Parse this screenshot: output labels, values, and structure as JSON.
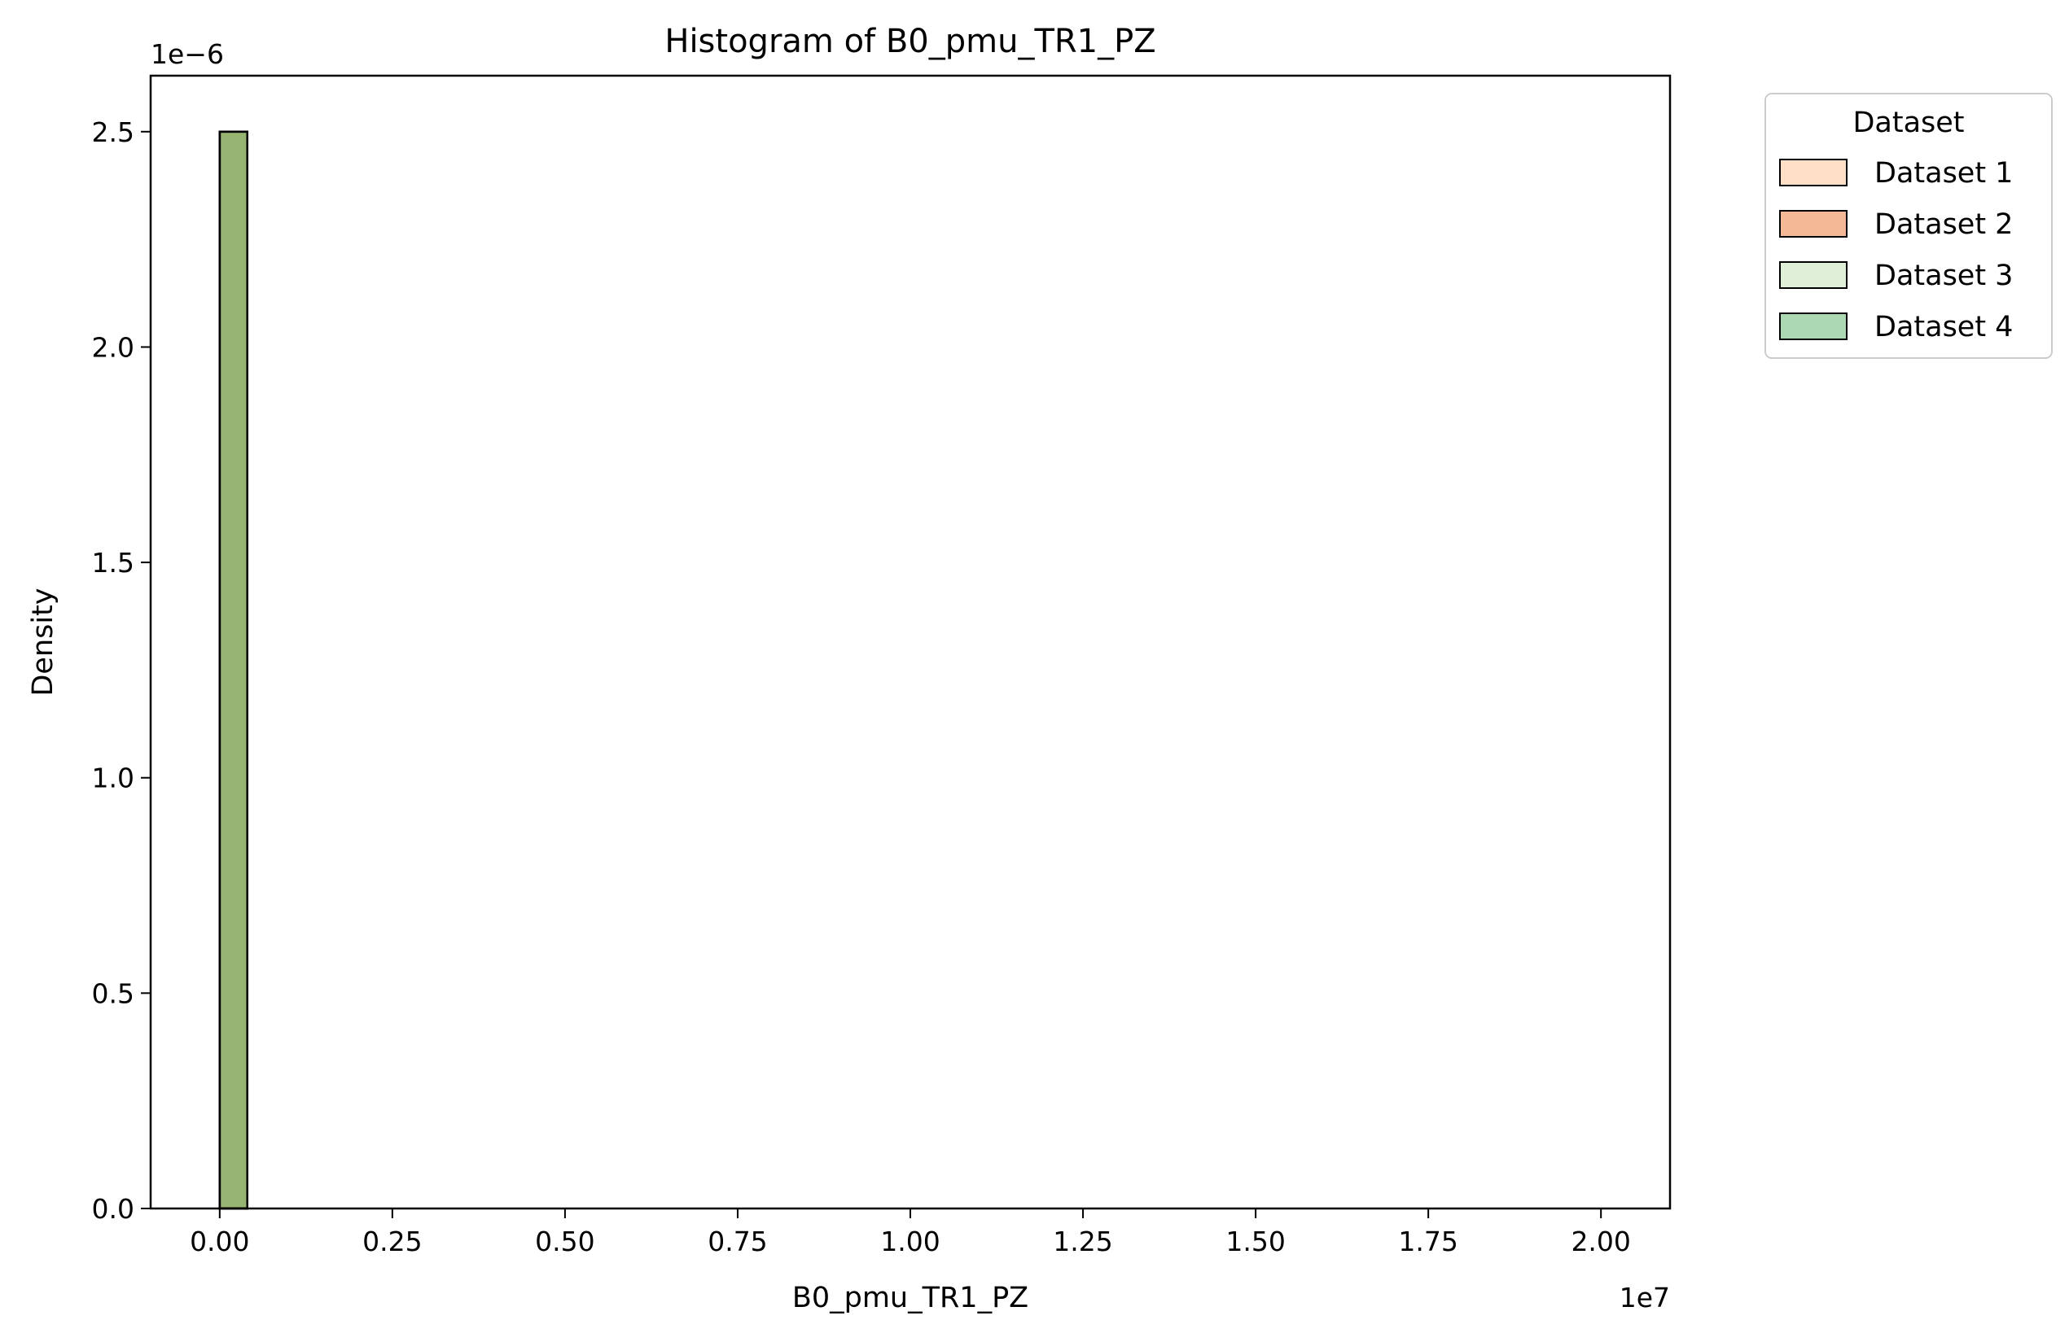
{
  "chart_data": {
    "type": "bar",
    "title": "Histogram of B0_pmu_TR1_PZ",
    "xlabel": "B0_pmu_TR1_PZ",
    "ylabel": "Density",
    "x_offset_label": "1e7",
    "y_offset_label": "1e−6",
    "xlim": [
      -1000000,
      21000000
    ],
    "ylim": [
      0,
      2.63e-06
    ],
    "x_ticks": [
      0,
      2500000,
      5000000,
      7500000,
      10000000,
      12500000,
      15000000,
      17500000,
      20000000
    ],
    "x_tick_labels": [
      "0.00",
      "0.25",
      "0.50",
      "0.75",
      "1.00",
      "1.25",
      "1.50",
      "1.75",
      "2.00"
    ],
    "y_ticks": [
      0,
      5e-07,
      1e-06,
      1.5e-06,
      2e-06,
      2.5e-06
    ],
    "y_tick_labels": [
      "0.0",
      "0.5",
      "1.0",
      "1.5",
      "2.0",
      "2.5"
    ],
    "grid": false,
    "legend": {
      "title": "Dataset",
      "placement": "outside-top-right",
      "entries": [
        {
          "label": "Dataset 1",
          "color": "#fde0c5"
        },
        {
          "label": "Dataset 2",
          "color": "#f3b896"
        },
        {
          "label": "Dataset 3",
          "color": "#e0f0d8"
        },
        {
          "label": "Dataset 4",
          "color": "#acd8b4"
        }
      ]
    },
    "series": [
      {
        "name": "Dataset 1",
        "color": "#fde0c5",
        "opacity": 0.5,
        "bins": [
          {
            "x0": 0,
            "x1": 400000,
            "density": 2.5e-06
          }
        ]
      },
      {
        "name": "Dataset 2",
        "color": "#f3b896",
        "opacity": 0.5,
        "bins": [
          {
            "x0": 0,
            "x1": 400000,
            "density": 2.5e-06
          }
        ]
      },
      {
        "name": "Dataset 3",
        "color": "#e0f0d8",
        "opacity": 0.5,
        "bins": [
          {
            "x0": 0,
            "x1": 400000,
            "density": 2.5e-06
          }
        ]
      },
      {
        "name": "Dataset 4",
        "color": "#acd8b4",
        "opacity": 0.5,
        "bins": [
          {
            "x0": 0,
            "x1": 400000,
            "density": 2.5e-06
          }
        ]
      }
    ],
    "overlap_color": "#98b473"
  }
}
